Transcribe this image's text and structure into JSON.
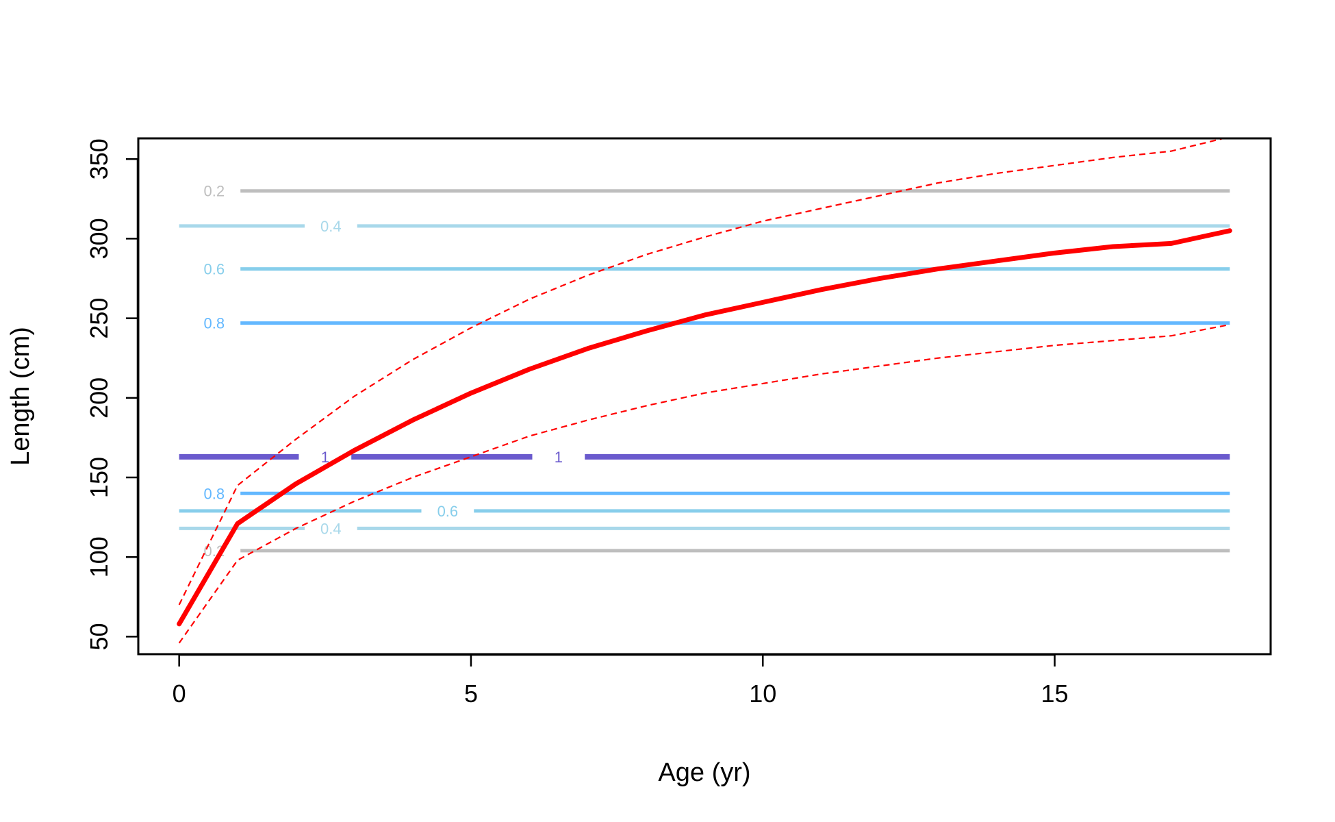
{
  "chart_data": {
    "type": "line",
    "xlabel": "Age (yr)",
    "ylabel": "Length (cm)",
    "xlim": [
      -0.7,
      18.7
    ],
    "ylim": [
      39,
      363
    ],
    "xticks": [
      0,
      5,
      10,
      15
    ],
    "yticks": [
      50,
      100,
      150,
      200,
      250,
      300,
      350
    ],
    "grid": false,
    "legend": "none",
    "series": [
      {
        "role": "mean",
        "color": "#ff0000",
        "style": "solid-thick",
        "x": [
          0,
          1,
          2,
          3,
          4,
          5,
          6,
          7,
          8,
          9,
          10,
          11,
          12,
          13,
          14,
          15,
          16,
          17,
          18
        ],
        "y": [
          58,
          121,
          146,
          167,
          186,
          203,
          218,
          231,
          242,
          252,
          260,
          268,
          275,
          281,
          286,
          291,
          295,
          297,
          305
        ]
      },
      {
        "role": "upper",
        "color": "#ff0000",
        "style": "dashed",
        "x": [
          0,
          1,
          2,
          3,
          4,
          5,
          6,
          7,
          8,
          9,
          10,
          11,
          12,
          13,
          14,
          15,
          16,
          17,
          18
        ],
        "y": [
          70,
          145,
          174,
          201,
          224,
          244,
          262,
          277,
          290,
          301,
          311,
          319,
          327,
          335,
          341,
          346,
          351,
          355,
          364
        ]
      },
      {
        "role": "lower",
        "color": "#ff0000",
        "style": "dashed",
        "x": [
          0,
          1,
          2,
          3,
          4,
          5,
          6,
          7,
          8,
          9,
          10,
          11,
          12,
          13,
          14,
          15,
          16,
          17,
          18
        ],
        "y": [
          46,
          98,
          118,
          135,
          150,
          163,
          176,
          186,
          195,
          203,
          209,
          215,
          220,
          225,
          229,
          233,
          236,
          239,
          246
        ]
      }
    ],
    "contours": [
      {
        "label": "0.2",
        "y": 330,
        "color": "#bebebe",
        "width": 5,
        "label_x": 0.3
      },
      {
        "label": "0.4",
        "y": 308,
        "color": "#a8d8ea",
        "width": 5,
        "label_x": 2.3
      },
      {
        "label": "0.6",
        "y": 281,
        "color": "#87ceeb",
        "width": 5,
        "label_x": 0.3
      },
      {
        "label": "0.8",
        "y": 247,
        "color": "#63b8ff",
        "width": 5,
        "label_x": 0.3
      },
      {
        "label": "1",
        "y": 163,
        "color": "#6a5acd",
        "width": 8,
        "label_x": 2.2
      },
      {
        "label": "1",
        "y": 163,
        "color": "#6a5acd",
        "width": 8,
        "label_x": 6.2
      },
      {
        "label": "0.8",
        "y": 140,
        "color": "#63b8ff",
        "width": 5,
        "label_x": 0.3
      },
      {
        "label": "0.6",
        "y": 129,
        "color": "#87ceeb",
        "width": 5,
        "label_x": 4.3
      },
      {
        "label": "0.4",
        "y": 118,
        "color": "#a8d8ea",
        "width": 5,
        "label_x": 2.3
      },
      {
        "label": "0.2",
        "y": 104,
        "color": "#bebebe",
        "width": 5,
        "label_x": 0.3
      }
    ]
  }
}
